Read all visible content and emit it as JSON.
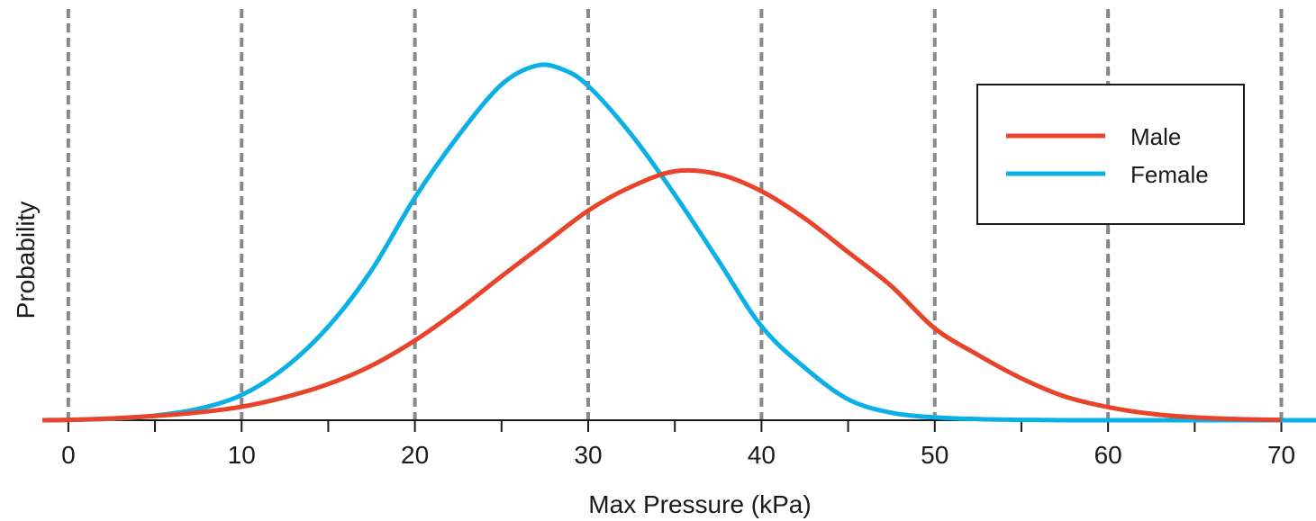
{
  "chart_data": {
    "type": "line",
    "title": "",
    "xlabel": "Max Pressure (kPa)",
    "ylabel": "Probability",
    "xlim": [
      -1.5,
      72
    ],
    "ylim": [
      0,
      1
    ],
    "x_ticks": [
      0,
      10,
      20,
      30,
      40,
      50,
      60,
      70
    ],
    "x_tick_labels": [
      "0",
      "10",
      "20",
      "30",
      "40",
      "50",
      "60",
      "70"
    ],
    "minor_x_ticks": [
      5,
      15,
      25,
      35,
      45,
      55,
      65
    ],
    "y_ticks_shown": false,
    "vertical_dashed_gridlines_at": [
      0,
      10,
      20,
      30,
      40,
      50,
      60,
      70
    ],
    "gridline_color": "#888888",
    "legend_position": "top-right",
    "series": [
      {
        "name": "Male",
        "color": "#e8432b",
        "x": [
          -1.5,
          0,
          2.5,
          5,
          7.5,
          10,
          12.5,
          15,
          17.5,
          20,
          22.5,
          25,
          27.5,
          30,
          32.5,
          35,
          37.5,
          40,
          42.5,
          45,
          47.5,
          50,
          52.5,
          55,
          57.5,
          60,
          62.5,
          65,
          67.5,
          70
        ],
        "values": [
          0.0,
          0.001,
          0.005,
          0.012,
          0.022,
          0.038,
          0.065,
          0.102,
          0.154,
          0.225,
          0.311,
          0.406,
          0.499,
          0.591,
          0.659,
          0.702,
          0.694,
          0.646,
          0.569,
          0.474,
          0.378,
          0.259,
          0.184,
          0.118,
          0.067,
          0.037,
          0.018,
          0.008,
          0.003,
          0.001
        ]
      },
      {
        "name": "Female",
        "color": "#0ab0e6",
        "x": [
          -1.5,
          0,
          2.5,
          5,
          7.5,
          10,
          12.5,
          15,
          17.5,
          20,
          22.5,
          25,
          27,
          28.5,
          30,
          32.5,
          35,
          37.5,
          40,
          42.5,
          45,
          47.5,
          50,
          52.5,
          55,
          57.5,
          60,
          65,
          70,
          72
        ],
        "values": [
          0.0,
          0.001,
          0.004,
          0.013,
          0.032,
          0.071,
          0.148,
          0.264,
          0.423,
          0.628,
          0.802,
          0.947,
          1.0,
          0.99,
          0.943,
          0.805,
          0.636,
          0.451,
          0.265,
          0.148,
          0.059,
          0.021,
          0.008,
          0.003,
          0.001,
          0.0,
          0.0,
          0.0,
          0.0,
          0.0
        ]
      }
    ]
  }
}
